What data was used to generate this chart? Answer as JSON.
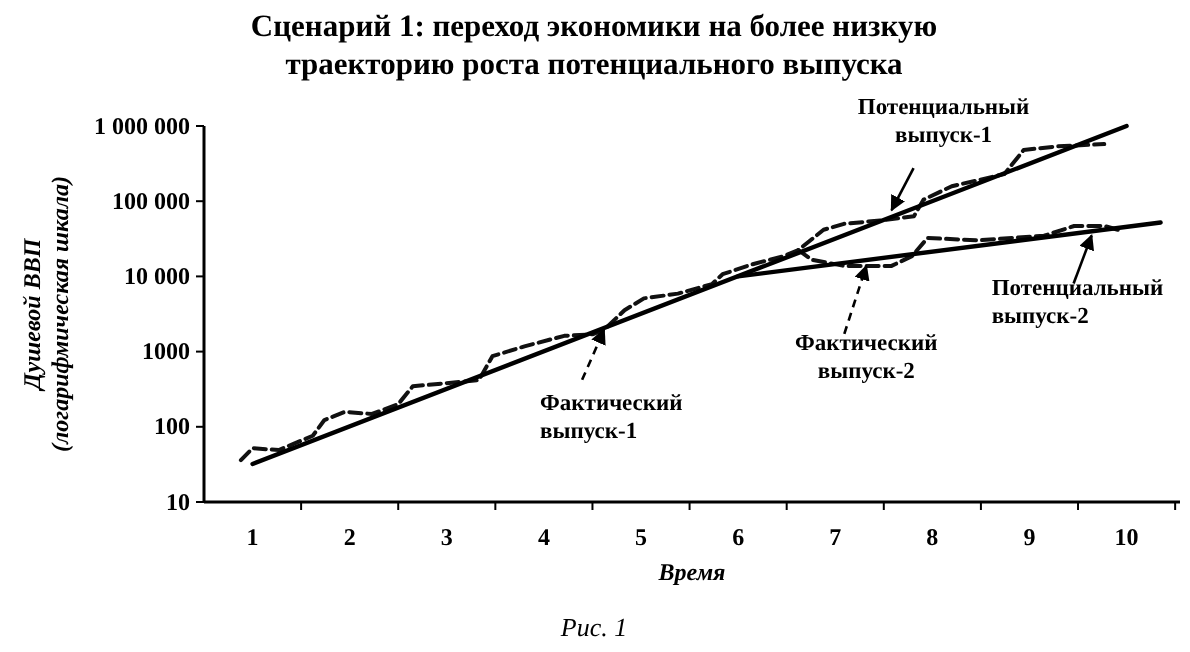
{
  "chart_data": {
    "type": "line",
    "title": "Сценарий 1: переход экономики на более низкую траекторию роста потенциального выпуска",
    "xlabel": "Время",
    "ylabel": "Душевой ВВП (логарифмическая шкала)",
    "log": "y",
    "grid": false,
    "xlim": [
      0.5,
      10.55
    ],
    "xticks": [
      1,
      {
        "value": 1.5,
        "label": null
      },
      2,
      {
        "value": 2.5,
        "label": null
      },
      3,
      {
        "value": 3.5,
        "label": null
      },
      4,
      {
        "value": 4.5,
        "label": null
      },
      5,
      {
        "value": 5.5,
        "label": null
      },
      6,
      {
        "value": 6.5,
        "label": null
      },
      7,
      {
        "value": 7.5,
        "label": null
      },
      8,
      {
        "value": 8.5,
        "label": null
      },
      9,
      {
        "value": 9.5,
        "label": null
      },
      10,
      {
        "value": 10.5,
        "label": null
      }
    ],
    "ylim": [
      10,
      1000000
    ],
    "yticks": [
      10,
      100,
      1000,
      {
        "value": 10000,
        "label": "10 000"
      },
      {
        "value": 100000,
        "label": "100 000"
      },
      {
        "value": 1000000,
        "label": "1 000 000"
      }
    ],
    "series": [
      {
        "color": "#111111",
        "line_style": "dashed",
        "x": [
          0.88,
          1.0,
          1.27,
          1.62,
          1.74,
          1.95,
          2.23,
          2.5,
          2.65,
          2.91,
          3.33,
          3.47,
          3.8,
          4.21,
          4.5,
          4.62,
          4.83,
          5.03,
          5.38,
          5.73,
          5.84,
          6.14,
          6.47,
          6.62,
          6.88,
          7.09,
          7.5,
          7.81,
          7.91,
          8.2,
          8.74,
          8.94,
          9.29,
          9.77
        ],
        "values": [
          36,
          52,
          49,
          76,
          123,
          158,
          148,
          200,
          347,
          371,
          417,
          870,
          1175,
          1620,
          1700,
          1950,
          3550,
          5100,
          5900,
          7900,
          10700,
          14400,
          18600,
          22400,
          41700,
          50000,
          56000,
          63000,
          105000,
          158000,
          229000,
          479000,
          537000,
          575000
        ]
      },
      {
        "color": "#111111",
        "line_style": "dashed",
        "x": [
          6.62,
          6.76,
          7.09,
          7.58,
          7.79,
          7.95,
          8.47,
          9.15,
          9.46,
          9.77,
          9.91
        ],
        "values": [
          22400,
          16600,
          13800,
          13800,
          18600,
          32400,
          30200,
          34700,
          46800,
          46800,
          41700
        ]
      },
      {
        "color": "#000000",
        "line_style": "solid",
        "x": [
          1,
          10
        ],
        "values": [
          32,
          1000000
        ]
      },
      {
        "color": "#000000",
        "line_style": "solid",
        "x": [
          6,
          10.35
        ],
        "values": [
          10000,
          52000
        ]
      }
    ],
    "annotations": [
      {
        "text": "Потенциальный выпуск-1",
        "x": 7.58,
        "y": 76000
      },
      {
        "text": "Фактический выпуск-2",
        "x": 7.32,
        "y": 13800
      },
      {
        "text": "Потенциальный выпуск-2",
        "x": 9.64,
        "y": 35000
      },
      {
        "text": "Фактический выпуск-1",
        "x": 4.62,
        "y": 1950
      },
      "Рис. 1"
    ]
  }
}
